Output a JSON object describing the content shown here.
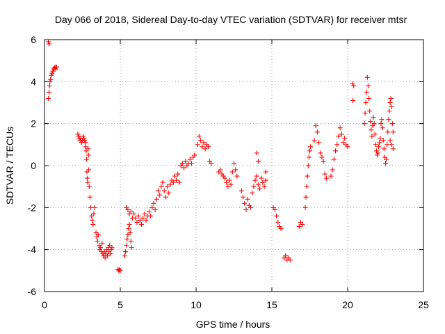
{
  "chart_data": {
    "type": "scatter",
    "title": "Day 066 of 2018, Sidereal Day-to-day VTEC variation (SDTVAR) for receiver mtsr",
    "xlabel": "GPS time / hours",
    "ylabel": "SDTVAR / TECUs",
    "xlim": [
      0,
      25
    ],
    "ylim": [
      -6,
      6
    ],
    "xticks": [
      "0",
      "5",
      "10",
      "15",
      "20",
      "25"
    ],
    "yticks": [
      "-6",
      "-4",
      "-2",
      "0",
      "2",
      "4",
      "6"
    ],
    "grid": true,
    "marker": "+",
    "color": "#ff0000",
    "series": [
      {
        "name": "SDTVAR",
        "points": [
          [
            0.25,
            5.9
          ],
          [
            0.3,
            5.8
          ],
          [
            0.25,
            3.2
          ],
          [
            0.3,
            3.5
          ],
          [
            0.33,
            3.8
          ],
          [
            0.36,
            4.0
          ],
          [
            0.4,
            4.1
          ],
          [
            0.45,
            4.3
          ],
          [
            0.5,
            4.4
          ],
          [
            0.55,
            4.5
          ],
          [
            0.6,
            4.6
          ],
          [
            0.65,
            4.65
          ],
          [
            0.7,
            4.7
          ],
          [
            0.75,
            4.6
          ],
          [
            0.8,
            4.7
          ],
          [
            2.2,
            1.5
          ],
          [
            2.25,
            1.4
          ],
          [
            2.3,
            1.3
          ],
          [
            2.35,
            1.2
          ],
          [
            2.4,
            1.3
          ],
          [
            2.45,
            1.1
          ],
          [
            2.5,
            1.2
          ],
          [
            2.55,
            1.4
          ],
          [
            2.6,
            1.3
          ],
          [
            2.65,
            1.2
          ],
          [
            2.7,
            0.9
          ],
          [
            2.72,
            1.1
          ],
          [
            2.75,
            0.7
          ],
          [
            2.78,
            0.3
          ],
          [
            2.8,
            -0.3
          ],
          [
            2.82,
            -0.6
          ],
          [
            2.85,
            -0.8
          ],
          [
            2.88,
            0.8
          ],
          [
            2.9,
            0.5
          ],
          [
            2.92,
            -0.2
          ],
          [
            2.95,
            -1.0
          ],
          [
            3.0,
            -1.5
          ],
          [
            3.05,
            -2.0
          ],
          [
            3.1,
            -2.4
          ],
          [
            3.15,
            -2.6
          ],
          [
            3.2,
            -2.8
          ],
          [
            3.25,
            -2.3
          ],
          [
            3.3,
            -2.0
          ],
          [
            3.4,
            -3.2
          ],
          [
            3.45,
            -3.4
          ],
          [
            3.5,
            -3.6
          ],
          [
            3.55,
            -3.3
          ],
          [
            3.6,
            -3.8
          ],
          [
            3.65,
            -4.0
          ],
          [
            3.7,
            -3.9
          ],
          [
            3.75,
            -4.1
          ],
          [
            3.8,
            -3.7
          ],
          [
            3.85,
            -4.2
          ],
          [
            3.9,
            -4.3
          ],
          [
            3.95,
            -4.1
          ],
          [
            4.0,
            -4.4
          ],
          [
            4.05,
            -4.2
          ],
          [
            4.1,
            -4.0
          ],
          [
            4.15,
            -4.3
          ],
          [
            4.2,
            -3.9
          ],
          [
            4.25,
            -4.1
          ],
          [
            4.3,
            -3.8
          ],
          [
            4.35,
            -4.2
          ],
          [
            4.4,
            -4.0
          ],
          [
            4.45,
            -3.9
          ],
          [
            4.85,
            -4.95
          ],
          [
            4.9,
            -5.0
          ],
          [
            4.95,
            -4.95
          ],
          [
            5.0,
            -5.0
          ],
          [
            5.3,
            -4.3
          ],
          [
            5.35,
            -4.1
          ],
          [
            5.4,
            -3.8
          ],
          [
            5.45,
            -3.5
          ],
          [
            5.5,
            -3.3
          ],
          [
            5.55,
            -3.0
          ],
          [
            5.6,
            -2.8
          ],
          [
            5.65,
            -3.2
          ],
          [
            5.7,
            -3.6
          ],
          [
            5.75,
            -3.9
          ],
          [
            5.4,
            -2.0
          ],
          [
            5.5,
            -2.1
          ],
          [
            5.6,
            -2.3
          ],
          [
            5.7,
            -2.2
          ],
          [
            5.8,
            -2.5
          ],
          [
            5.9,
            -2.3
          ],
          [
            6.0,
            -2.5
          ],
          [
            6.1,
            -2.7
          ],
          [
            6.2,
            -2.4
          ],
          [
            6.3,
            -2.6
          ],
          [
            6.4,
            -2.8
          ],
          [
            6.5,
            -2.5
          ],
          [
            6.6,
            -2.3
          ],
          [
            6.7,
            -2.6
          ],
          [
            6.8,
            -2.4
          ],
          [
            6.9,
            -2.2
          ],
          [
            7.0,
            -2.4
          ],
          [
            7.1,
            -2.0
          ],
          [
            7.2,
            -1.8
          ],
          [
            7.3,
            -2.1
          ],
          [
            7.4,
            -1.6
          ],
          [
            7.5,
            -1.2
          ],
          [
            7.6,
            -1.4
          ],
          [
            7.7,
            -1.0
          ],
          [
            7.8,
            -0.8
          ],
          [
            7.9,
            -1.2
          ],
          [
            8.0,
            -1.5
          ],
          [
            8.1,
            -1.0
          ],
          [
            8.2,
            -1.3
          ],
          [
            8.3,
            -0.9
          ],
          [
            8.4,
            -0.7
          ],
          [
            8.5,
            -0.8
          ],
          [
            8.6,
            -0.5
          ],
          [
            8.7,
            -0.7
          ],
          [
            8.8,
            -0.4
          ],
          [
            8.9,
            -0.8
          ],
          [
            9.0,
            0.0
          ],
          [
            9.1,
            0.1
          ],
          [
            9.2,
            -0.1
          ],
          [
            9.3,
            0.2
          ],
          [
            9.4,
            0.0
          ],
          [
            9.5,
            0.1
          ],
          [
            9.6,
            0.3
          ],
          [
            9.7,
            0.1
          ],
          [
            9.8,
            0.4
          ],
          [
            9.9,
            0.5
          ],
          [
            10.1,
            1.0
          ],
          [
            10.2,
            1.4
          ],
          [
            10.3,
            1.2
          ],
          [
            10.4,
            0.9
          ],
          [
            10.5,
            1.1
          ],
          [
            10.6,
            0.8
          ],
          [
            10.7,
            1.0
          ],
          [
            10.8,
            0.9
          ],
          [
            10.9,
            0.2
          ],
          [
            11.0,
            0.1
          ],
          [
            11.5,
            -0.3
          ],
          [
            11.6,
            -0.2
          ],
          [
            11.7,
            -0.4
          ],
          [
            11.8,
            -0.5
          ],
          [
            11.9,
            -0.6
          ],
          [
            12.0,
            -0.8
          ],
          [
            12.1,
            -1.0
          ],
          [
            12.2,
            -0.7
          ],
          [
            12.3,
            -0.9
          ],
          [
            12.4,
            -0.3
          ],
          [
            12.5,
            0.1
          ],
          [
            12.6,
            -0.2
          ],
          [
            12.7,
            -0.5
          ],
          [
            13.0,
            -1.2
          ],
          [
            13.1,
            -1.5
          ],
          [
            13.2,
            -1.8
          ],
          [
            13.3,
            -2.1
          ],
          [
            13.4,
            -1.6
          ],
          [
            13.5,
            -1.9
          ],
          [
            13.6,
            -2.0
          ],
          [
            13.7,
            -1.3
          ],
          [
            13.8,
            -1.0
          ],
          [
            13.9,
            -0.7
          ],
          [
            14.0,
            -0.5
          ],
          [
            14.1,
            -0.9
          ],
          [
            14.2,
            -1.1
          ],
          [
            14.3,
            -0.6
          ],
          [
            14.4,
            -0.8
          ],
          [
            14.5,
            -1.0
          ],
          [
            14.6,
            -0.7
          ],
          [
            14.0,
            0.6
          ],
          [
            14.1,
            0.2
          ],
          [
            14.6,
            -0.3
          ],
          [
            15.1,
            -2.0
          ],
          [
            15.2,
            -2.1
          ],
          [
            15.3,
            -2.4
          ],
          [
            15.4,
            -2.7
          ],
          [
            15.5,
            -2.9
          ],
          [
            15.6,
            -3.0
          ],
          [
            15.8,
            -4.4
          ],
          [
            15.9,
            -4.3
          ],
          [
            16.0,
            -4.5
          ],
          [
            16.1,
            -4.4
          ],
          [
            16.2,
            -4.5
          ],
          [
            16.8,
            -2.9
          ],
          [
            16.9,
            -2.7
          ],
          [
            17.0,
            -2.8
          ],
          [
            17.2,
            -2.0
          ],
          [
            17.25,
            -1.5
          ],
          [
            17.3,
            -1.0
          ],
          [
            17.35,
            -0.5
          ],
          [
            17.4,
            0.0
          ],
          [
            17.45,
            0.4
          ],
          [
            17.5,
            0.7
          ],
          [
            17.55,
            0.9
          ],
          [
            17.8,
            1.2
          ],
          [
            17.9,
            1.9
          ],
          [
            18.0,
            1.6
          ],
          [
            18.1,
            1.1
          ],
          [
            18.2,
            0.6
          ],
          [
            18.3,
            0.4
          ],
          [
            18.4,
            0.2
          ],
          [
            18.5,
            -0.4
          ],
          [
            18.6,
            -0.6
          ],
          [
            18.9,
            -0.5
          ],
          [
            19.0,
            -0.2
          ],
          [
            19.1,
            0.3
          ],
          [
            19.2,
            0.7
          ],
          [
            19.3,
            1.0
          ],
          [
            19.4,
            1.4
          ],
          [
            19.5,
            1.8
          ],
          [
            19.6,
            1.5
          ],
          [
            19.7,
            1.1
          ],
          [
            19.8,
            1.3
          ],
          [
            19.9,
            1.0
          ],
          [
            20.0,
            0.9
          ],
          [
            20.3,
            3.9
          ],
          [
            20.4,
            3.8
          ],
          [
            20.35,
            3.1
          ],
          [
            21.1,
            2.0
          ],
          [
            21.15,
            2.5
          ],
          [
            21.2,
            3.0
          ],
          [
            21.25,
            3.5
          ],
          [
            21.3,
            4.2
          ],
          [
            21.35,
            3.8
          ],
          [
            21.4,
            3.2
          ],
          [
            21.45,
            2.6
          ],
          [
            21.5,
            2.1
          ],
          [
            21.55,
            1.7
          ],
          [
            21.6,
            1.4
          ],
          [
            21.65,
            1.9
          ],
          [
            21.7,
            2.3
          ],
          [
            21.75,
            2.0
          ],
          [
            21.8,
            1.5
          ],
          [
            21.85,
            1.0
          ],
          [
            21.9,
            0.7
          ],
          [
            21.95,
            0.5
          ],
          [
            22.0,
            0.6
          ],
          [
            22.05,
            0.9
          ],
          [
            22.1,
            1.1
          ],
          [
            22.15,
            1.3
          ],
          [
            22.2,
            2.0
          ],
          [
            22.25,
            2.2
          ],
          [
            22.3,
            1.8
          ],
          [
            22.35,
            1.2
          ],
          [
            22.4,
            0.8
          ],
          [
            22.45,
            0.4
          ],
          [
            22.5,
            0.1
          ],
          [
            22.55,
            0.3
          ],
          [
            22.6,
            1.0
          ],
          [
            22.65,
            1.6
          ],
          [
            22.7,
            2.2
          ],
          [
            22.75,
            2.6
          ],
          [
            22.8,
            3.0
          ],
          [
            22.85,
            3.2
          ],
          [
            22.9,
            2.8
          ],
          [
            22.95,
            2.0
          ],
          [
            23.0,
            1.6
          ],
          [
            23.0,
            0.8
          ],
          [
            22.9,
            1.0
          ],
          [
            22.8,
            1.2
          ]
        ]
      }
    ]
  }
}
